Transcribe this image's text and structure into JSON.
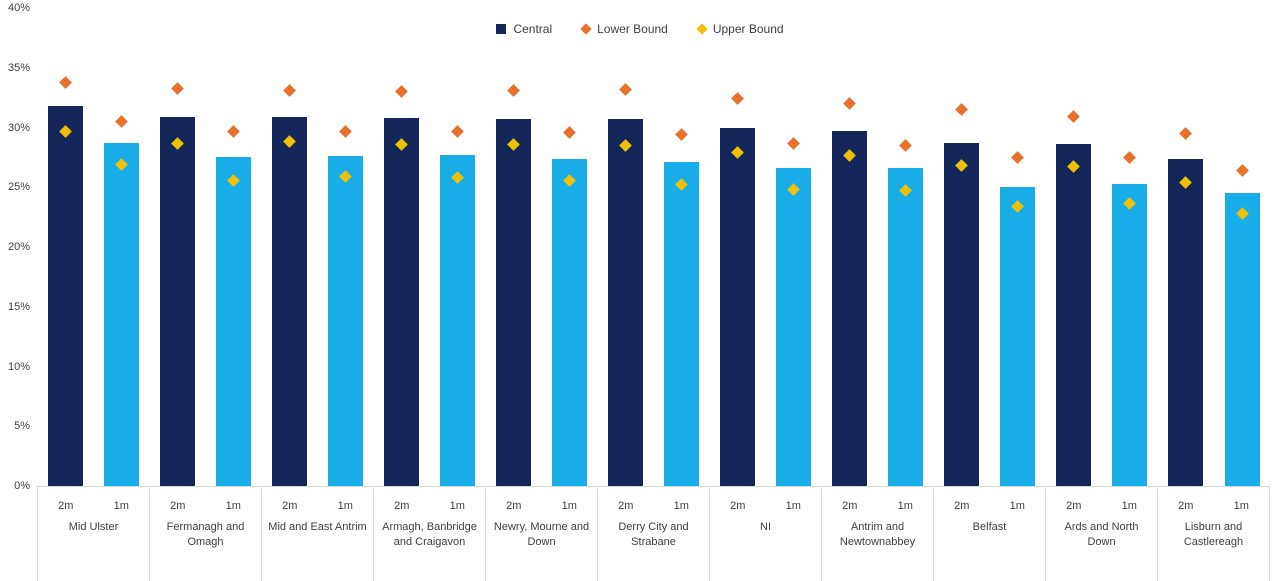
{
  "legend": {
    "items": [
      {
        "label": "Central",
        "marker": "square",
        "color": "#15265b"
      },
      {
        "label": "Lower Bound",
        "marker": "diamond",
        "color": "#e8722c"
      },
      {
        "label": "Upper Bound",
        "marker": "diamond",
        "color": "#efc008"
      }
    ]
  },
  "y_axis": {
    "tick_labels": [
      "0%",
      "5%",
      "10%",
      "15%",
      "20%",
      "25%",
      "30%",
      "35%",
      "40%"
    ],
    "min": 0,
    "max": 40,
    "step": 5
  },
  "chart_data": {
    "type": "bar",
    "title": "",
    "xlabel": "",
    "ylabel": "",
    "ylim": [
      0,
      40
    ],
    "grid": false,
    "legend_position": "top-center",
    "sub_categories": [
      "2m",
      "1m"
    ],
    "colors": {
      "bar_2m": "#15265b",
      "bar_1m": "#18ade8",
      "lower_bound": "#e8722c",
      "upper_bound": "#efc008",
      "axis_line": "#d9d9d9"
    },
    "note": "Each district has two bars (2m navy, 1m light blue) = Central estimate; orange diamond = Lower Bound marker plotted above bar top; yellow diamond = Upper Bound marker plotted below bar top. Values in percent.",
    "groups": [
      {
        "label": "Mid Ulster",
        "bars": [
          {
            "sub": "2m",
            "central": 31.8,
            "lower_bound": 33.8,
            "upper_bound": 29.7
          },
          {
            "sub": "1m",
            "central": 28.7,
            "lower_bound": 30.5,
            "upper_bound": 26.9
          }
        ]
      },
      {
        "label": "Fermanagh and Omagh",
        "bars": [
          {
            "sub": "2m",
            "central": 30.9,
            "lower_bound": 33.3,
            "upper_bound": 28.7
          },
          {
            "sub": "1m",
            "central": 27.5,
            "lower_bound": 29.7,
            "upper_bound": 25.6
          }
        ]
      },
      {
        "label": "Mid and East Antrim",
        "bars": [
          {
            "sub": "2m",
            "central": 30.9,
            "lower_bound": 33.1,
            "upper_bound": 28.8
          },
          {
            "sub": "1m",
            "central": 27.6,
            "lower_bound": 29.7,
            "upper_bound": 25.9
          }
        ]
      },
      {
        "label": "Armagh, Banbridge and Craigavon",
        "bars": [
          {
            "sub": "2m",
            "central": 30.8,
            "lower_bound": 33.0,
            "upper_bound": 28.6
          },
          {
            "sub": "1m",
            "central": 27.7,
            "lower_bound": 29.7,
            "upper_bound": 25.8
          }
        ]
      },
      {
        "label": "Newry, Mourne and Down",
        "bars": [
          {
            "sub": "2m",
            "central": 30.7,
            "lower_bound": 33.1,
            "upper_bound": 28.6
          },
          {
            "sub": "1m",
            "central": 27.4,
            "lower_bound": 29.6,
            "upper_bound": 25.6
          }
        ]
      },
      {
        "label": "Derry City and Strabane",
        "bars": [
          {
            "sub": "2m",
            "central": 30.7,
            "lower_bound": 33.2,
            "upper_bound": 28.5
          },
          {
            "sub": "1m",
            "central": 27.1,
            "lower_bound": 29.4,
            "upper_bound": 25.2
          }
        ]
      },
      {
        "label": "NI",
        "bars": [
          {
            "sub": "2m",
            "central": 30.0,
            "lower_bound": 32.4,
            "upper_bound": 27.9
          },
          {
            "sub": "1m",
            "central": 26.6,
            "lower_bound": 28.7,
            "upper_bound": 24.8
          }
        ]
      },
      {
        "label": "Antrim and Newtownabbey",
        "bars": [
          {
            "sub": "2m",
            "central": 29.7,
            "lower_bound": 32.0,
            "upper_bound": 27.7
          },
          {
            "sub": "1m",
            "central": 26.6,
            "lower_bound": 28.5,
            "upper_bound": 24.7
          }
        ]
      },
      {
        "label": "Belfast",
        "bars": [
          {
            "sub": "2m",
            "central": 28.7,
            "lower_bound": 31.5,
            "upper_bound": 26.8
          },
          {
            "sub": "1m",
            "central": 25.0,
            "lower_bound": 27.5,
            "upper_bound": 23.4
          }
        ]
      },
      {
        "label": "Ards and North Down",
        "bars": [
          {
            "sub": "2m",
            "central": 28.6,
            "lower_bound": 30.9,
            "upper_bound": 26.7
          },
          {
            "sub": "1m",
            "central": 25.3,
            "lower_bound": 27.5,
            "upper_bound": 23.6
          }
        ]
      },
      {
        "label": "Lisburn and Castlereagh",
        "bars": [
          {
            "sub": "2m",
            "central": 27.4,
            "lower_bound": 29.5,
            "upper_bound": 25.4
          },
          {
            "sub": "1m",
            "central": 24.5,
            "lower_bound": 26.4,
            "upper_bound": 22.8
          }
        ]
      }
    ]
  }
}
